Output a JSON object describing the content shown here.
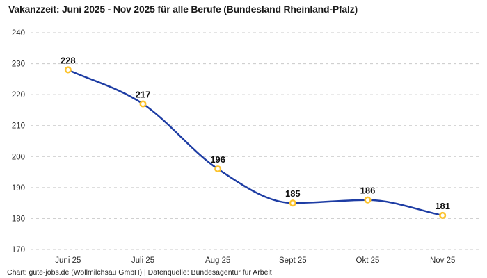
{
  "header": {
    "title": "Vakanzzeit: Juni 2025 - Nov 2025 für alle Berufe (Bundesland Rheinland-Pfalz)"
  },
  "footer": {
    "credit": "Chart: gute-jobs.de (Wollmilchsau GmbH) | Datenquelle: Bundesagentur für Arbeit"
  },
  "chart_data": {
    "type": "line",
    "title": "Vakanzzeit: Juni 2025 - Nov 2025 für alle Berufe (Bundesland Rheinland-Pfalz)",
    "categories": [
      "Juni 25",
      "Juli 25",
      "Aug 25",
      "Sept 25",
      "Okt 25",
      "Nov 25"
    ],
    "values": [
      228,
      217,
      196,
      185,
      186,
      181
    ],
    "value_labels": [
      "228",
      "217",
      "196",
      "185",
      "186",
      "181"
    ],
    "ylim": [
      170,
      240
    ],
    "yticks": [
      240,
      230,
      220,
      210,
      200,
      190,
      180,
      170
    ],
    "xlabel": "",
    "ylabel": "",
    "legend": "none",
    "grid": "horizontal-dashed",
    "line_style": "smooth-monotone",
    "colors": {
      "line": "#1e3da4",
      "marker_ring": "#fcc32d",
      "marker_fill": "#ffffff",
      "gridline": "#c9c9c9",
      "value_label_text": "#111111",
      "tick_text": "#2b2b2b"
    }
  }
}
